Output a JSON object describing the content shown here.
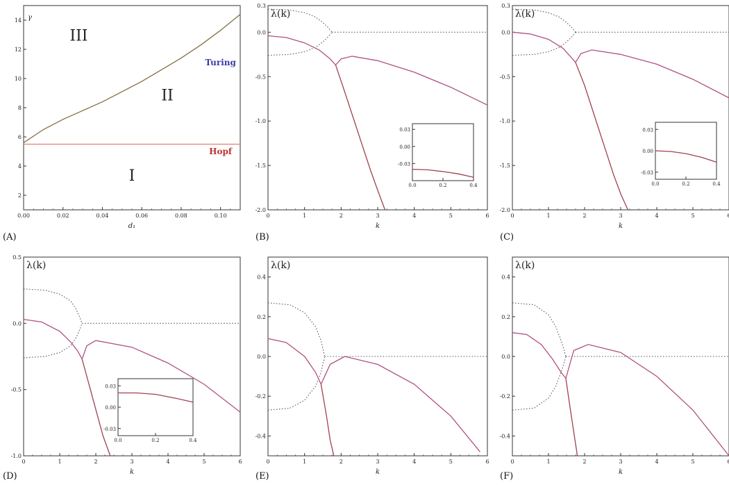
{
  "colors": {
    "axis": "#333333",
    "solid": "#a04050",
    "solid_alt": "#b05080",
    "dotted": "#555555",
    "hopf": "#e08070",
    "turing": "#807040",
    "turing_label": "#3a3aaa",
    "hopf_label": "#c03030"
  },
  "chart_data": [
    {
      "panel": "(A)",
      "type": "line",
      "xlabel": "d₁",
      "ylabel": "γ",
      "xlim": [
        0,
        0.11
      ],
      "ylim": [
        1,
        15
      ],
      "xticks": [
        "0.00",
        "0.02",
        "0.04",
        "0.06",
        "0.08",
        "0.10"
      ],
      "xtick_values": [
        0,
        0.02,
        0.04,
        0.06,
        0.08,
        0.1
      ],
      "yticks": [
        "2",
        "4",
        "6",
        "8",
        "10",
        "12",
        "14"
      ],
      "ytick_values": [
        2,
        4,
        6,
        8,
        10,
        12,
        14
      ],
      "series": [
        {
          "name": "Turing",
          "style": "solid",
          "color": "#807040",
          "x": [
            0,
            0.01,
            0.02,
            0.03,
            0.04,
            0.05,
            0.06,
            0.07,
            0.08,
            0.09,
            0.1,
            0.11
          ],
          "y": [
            5.6,
            6.5,
            7.2,
            7.8,
            8.4,
            9.1,
            9.8,
            10.6,
            11.4,
            12.3,
            13.3,
            14.4
          ]
        },
        {
          "name": "Hopf",
          "style": "solid",
          "color": "#e08070",
          "x": [
            0,
            0.11
          ],
          "y": [
            5.5,
            5.5
          ]
        }
      ],
      "region_labels": [
        {
          "text": "III",
          "x": 0.028,
          "y": 12.6
        },
        {
          "text": "II",
          "x": 0.073,
          "y": 8.5
        },
        {
          "text": "I",
          "x": 0.055,
          "y": 3.0
        }
      ],
      "curve_labels": [
        {
          "text": "Turing",
          "x": 0.1,
          "y": 10.9,
          "color": "#3a3aaa"
        },
        {
          "text": "Hopf",
          "x": 0.1,
          "y": 4.8,
          "color": "#c03030"
        }
      ]
    },
    {
      "panel": "(B)",
      "type": "line",
      "xlabel": "k",
      "ylabel": "λ(k)",
      "xlim": [
        0,
        6
      ],
      "ylim": [
        -2.0,
        0.3
      ],
      "xticks": [
        "0",
        "1",
        "2",
        "3",
        "4",
        "5",
        "6"
      ],
      "xtick_values": [
        0,
        1,
        2,
        3,
        4,
        5,
        6
      ],
      "yticks": [
        "0.3",
        "0.0",
        "-0.5",
        "-1.0",
        "-1.5",
        "-2.0"
      ],
      "ytick_values": [
        0.3,
        0.0,
        -0.5,
        -1.0,
        -1.5,
        -2.0
      ],
      "series": [
        {
          "style": "dotted",
          "x": [
            0,
            0.6,
            1.0,
            1.3,
            1.5,
            1.65,
            1.75
          ],
          "y": [
            0.26,
            0.25,
            0.22,
            0.17,
            0.11,
            0.05,
            0.0
          ]
        },
        {
          "style": "dotted",
          "x": [
            0,
            0.6,
            1.0,
            1.3,
            1.5,
            1.65,
            1.75
          ],
          "y": [
            -0.26,
            -0.25,
            -0.22,
            -0.17,
            -0.11,
            -0.05,
            0.0
          ]
        },
        {
          "style": "dotted",
          "x": [
            1.75,
            6
          ],
          "y": [
            0.0,
            0.0
          ]
        },
        {
          "style": "solid",
          "x": [
            0,
            0.5,
            1.0,
            1.4,
            1.7,
            1.85
          ],
          "y": [
            -0.04,
            -0.06,
            -0.12,
            -0.2,
            -0.3,
            -0.37
          ]
        },
        {
          "style": "solid",
          "x": [
            1.85,
            2.0,
            2.2,
            2.4,
            2.6,
            2.8,
            3.0,
            3.2
          ],
          "y": [
            -0.37,
            -0.55,
            -0.8,
            -1.05,
            -1.3,
            -1.55,
            -1.78,
            -2.0
          ]
        },
        {
          "style": "solid",
          "x": [
            1.85,
            2.0,
            2.3,
            3.0,
            4.0,
            5.0,
            6.0
          ],
          "y": [
            -0.37,
            -0.3,
            -0.27,
            -0.32,
            -0.45,
            -0.62,
            -0.82
          ]
        }
      ],
      "inset": {
        "xlim": [
          0,
          0.4
        ],
        "ylim": [
          -0.06,
          0.04
        ],
        "xticks": [
          "0.0",
          "0.2",
          "0.4"
        ],
        "xtick_values": [
          0,
          0.2,
          0.4
        ],
        "yticks": [
          "0.03",
          "0.00",
          "-0.03"
        ],
        "ytick_values": [
          0.03,
          0.0,
          -0.03
        ],
        "series": [
          {
            "style": "solid",
            "x": [
              0,
              0.1,
              0.2,
              0.3,
              0.4
            ],
            "y": [
              -0.04,
              -0.041,
              -0.044,
              -0.048,
              -0.054
            ]
          }
        ]
      }
    },
    {
      "panel": "(C)",
      "type": "line",
      "xlabel": "k",
      "ylabel": "λ(k)",
      "xlim": [
        0,
        6
      ],
      "ylim": [
        -2.0,
        0.3
      ],
      "xticks": [
        "0",
        "1",
        "2",
        "3",
        "4",
        "5",
        "6"
      ],
      "xtick_values": [
        0,
        1,
        2,
        3,
        4,
        5,
        6
      ],
      "yticks": [
        "0.3",
        "0.0",
        "-0.5",
        "-1.0",
        "-1.5",
        "-2.0"
      ],
      "ytick_values": [
        0.3,
        0.0,
        -0.5,
        -1.0,
        -1.5,
        -2.0
      ],
      "series": [
        {
          "style": "dotted",
          "x": [
            0,
            0.6,
            1.0,
            1.3,
            1.5,
            1.65,
            1.75
          ],
          "y": [
            0.26,
            0.25,
            0.22,
            0.17,
            0.11,
            0.05,
            0.0
          ]
        },
        {
          "style": "dotted",
          "x": [
            0,
            0.6,
            1.0,
            1.3,
            1.5,
            1.65,
            1.75
          ],
          "y": [
            -0.26,
            -0.25,
            -0.22,
            -0.17,
            -0.11,
            -0.05,
            0.0
          ]
        },
        {
          "style": "dotted",
          "x": [
            1.75,
            6
          ],
          "y": [
            0.0,
            0.0
          ]
        },
        {
          "style": "solid",
          "x": [
            0,
            0.5,
            1.0,
            1.4,
            1.6,
            1.75
          ],
          "y": [
            0.0,
            -0.02,
            -0.08,
            -0.18,
            -0.27,
            -0.34
          ]
        },
        {
          "style": "solid",
          "x": [
            1.75,
            2.0,
            2.2,
            2.4,
            2.6,
            2.8,
            3.0,
            3.2
          ],
          "y": [
            -0.34,
            -0.6,
            -0.85,
            -1.1,
            -1.35,
            -1.6,
            -1.82,
            -2.0
          ]
        },
        {
          "style": "solid",
          "x": [
            1.75,
            1.9,
            2.2,
            3.0,
            4.0,
            5.0,
            6.0
          ],
          "y": [
            -0.34,
            -0.24,
            -0.2,
            -0.25,
            -0.36,
            -0.53,
            -0.74
          ]
        }
      ],
      "inset": {
        "xlim": [
          0,
          0.4
        ],
        "ylim": [
          -0.04,
          0.04
        ],
        "xticks": [
          "0.0",
          "0.2",
          "0.4"
        ],
        "xtick_values": [
          0,
          0.2,
          0.4
        ],
        "yticks": [
          "0.03",
          "0.00",
          "-0.03"
        ],
        "ytick_values": [
          0.03,
          0.0,
          -0.03
        ],
        "series": [
          {
            "style": "solid",
            "x": [
              0,
              0.1,
              0.2,
              0.3,
              0.4
            ],
            "y": [
              0.0,
              -0.001,
              -0.004,
              -0.009,
              -0.016
            ]
          }
        ]
      }
    },
    {
      "panel": "(D)",
      "type": "line",
      "xlabel": "k",
      "ylabel": "λ(k)",
      "xlim": [
        0,
        6
      ],
      "ylim": [
        -1.0,
        0.5
      ],
      "xticks": [
        "0",
        "1",
        "2",
        "3",
        "4",
        "5",
        "6"
      ],
      "xtick_values": [
        0,
        1,
        2,
        3,
        4,
        5,
        6
      ],
      "yticks": [
        "0.5",
        "0.0",
        "-0.5",
        "-1.0"
      ],
      "ytick_values": [
        0.5,
        0.0,
        -0.5,
        -1.0
      ],
      "series": [
        {
          "style": "dotted",
          "x": [
            0,
            0.6,
            1.0,
            1.3,
            1.45,
            1.55,
            1.62
          ],
          "y": [
            0.26,
            0.25,
            0.22,
            0.17,
            0.11,
            0.05,
            0.0
          ]
        },
        {
          "style": "dotted",
          "x": [
            0,
            0.6,
            1.0,
            1.3,
            1.45,
            1.55,
            1.62
          ],
          "y": [
            -0.26,
            -0.25,
            -0.22,
            -0.17,
            -0.11,
            -0.05,
            0.0
          ]
        },
        {
          "style": "dotted",
          "x": [
            1.62,
            6
          ],
          "y": [
            0.0,
            0.0
          ]
        },
        {
          "style": "solid",
          "x": [
            0,
            0.5,
            1.0,
            1.3,
            1.5,
            1.62
          ],
          "y": [
            0.03,
            0.01,
            -0.06,
            -0.14,
            -0.21,
            -0.27
          ]
        },
        {
          "style": "solid",
          "x": [
            1.62,
            1.8,
            2.0,
            2.2,
            2.4
          ],
          "y": [
            -0.27,
            -0.45,
            -0.65,
            -0.85,
            -1.0
          ]
        },
        {
          "style": "solid",
          "x": [
            1.62,
            1.75,
            2.0,
            3.0,
            4.0,
            5.0,
            6.0
          ],
          "y": [
            -0.27,
            -0.17,
            -0.13,
            -0.18,
            -0.3,
            -0.46,
            -0.67
          ]
        }
      ],
      "inset": {
        "xlim": [
          0,
          0.4
        ],
        "ylim": [
          -0.04,
          0.04
        ],
        "xticks": [
          "0.0",
          "0.2",
          "0.4"
        ],
        "xtick_values": [
          0,
          0.2,
          0.4
        ],
        "yticks": [
          "0.03",
          "0.00",
          "-0.03"
        ],
        "ytick_values": [
          0.03,
          0.0,
          -0.03
        ],
        "series": [
          {
            "style": "solid",
            "x": [
              0,
              0.1,
              0.2,
              0.3,
              0.4
            ],
            "y": [
              0.02,
              0.02,
              0.018,
              0.013,
              0.007
            ]
          }
        ]
      }
    },
    {
      "panel": "(E)",
      "type": "line",
      "xlabel": "k",
      "ylabel": "λ(k)",
      "xlim": [
        0,
        6
      ],
      "ylim": [
        -0.5,
        0.5
      ],
      "xticks": [
        "0",
        "1",
        "2",
        "3",
        "4",
        "5",
        "6"
      ],
      "xtick_values": [
        0,
        1,
        2,
        3,
        4,
        5,
        6
      ],
      "yticks": [
        "0.4",
        "0.2",
        "0.0",
        "-0.2",
        "-0.4"
      ],
      "ytick_values": [
        0.4,
        0.2,
        0.0,
        -0.2,
        -0.4
      ],
      "series": [
        {
          "style": "dotted",
          "x": [
            0,
            0.6,
            1.0,
            1.3,
            1.45,
            1.5,
            1.55
          ],
          "y": [
            0.27,
            0.26,
            0.22,
            0.15,
            0.08,
            0.04,
            0.0
          ]
        },
        {
          "style": "dotted",
          "x": [
            0,
            0.6,
            1.0,
            1.3,
            1.45,
            1.5,
            1.55
          ],
          "y": [
            -0.27,
            -0.26,
            -0.22,
            -0.15,
            -0.08,
            -0.04,
            0.0
          ]
        },
        {
          "style": "dotted",
          "x": [
            1.55,
            6
          ],
          "y": [
            0.0,
            0.0
          ]
        },
        {
          "style": "solid",
          "x": [
            0,
            0.5,
            1.0,
            1.3,
            1.45
          ],
          "y": [
            0.09,
            0.07,
            0.0,
            -0.08,
            -0.14
          ]
        },
        {
          "style": "solid",
          "x": [
            1.45,
            1.6,
            1.7,
            1.8
          ],
          "y": [
            -0.14,
            -0.3,
            -0.42,
            -0.5
          ]
        },
        {
          "style": "solid",
          "x": [
            1.45,
            1.7,
            2.1,
            3.0,
            4.0,
            5.0,
            5.8
          ],
          "y": [
            -0.14,
            -0.04,
            0.0,
            -0.04,
            -0.14,
            -0.3,
            -0.48
          ]
        }
      ]
    },
    {
      "panel": "(F)",
      "type": "line",
      "xlabel": "k",
      "ylabel": "λ(k)",
      "xlim": [
        0,
        6
      ],
      "ylim": [
        -0.5,
        0.5
      ],
      "xticks": [
        "0",
        "1",
        "2",
        "3",
        "4",
        "5",
        "6"
      ],
      "xtick_values": [
        0,
        1,
        2,
        3,
        4,
        5,
        6
      ],
      "yticks": [
        "0.4",
        "0.2",
        "0.0",
        "-0.2",
        "-0.4"
      ],
      "ytick_values": [
        0.4,
        0.2,
        0.0,
        -0.2,
        -0.4
      ],
      "series": [
        {
          "style": "dotted",
          "x": [
            0,
            0.6,
            1.0,
            1.2,
            1.35,
            1.42,
            1.48
          ],
          "y": [
            0.27,
            0.26,
            0.21,
            0.15,
            0.08,
            0.04,
            0.0
          ]
        },
        {
          "style": "dotted",
          "x": [
            0,
            0.6,
            1.0,
            1.2,
            1.35,
            1.42,
            1.48
          ],
          "y": [
            -0.27,
            -0.26,
            -0.21,
            -0.15,
            -0.08,
            -0.04,
            0.0
          ]
        },
        {
          "style": "dotted",
          "x": [
            1.48,
            6
          ],
          "y": [
            0.0,
            0.0
          ]
        },
        {
          "style": "solid",
          "x": [
            0,
            0.4,
            0.8,
            1.1,
            1.35,
            1.48
          ],
          "y": [
            0.12,
            0.11,
            0.06,
            -0.01,
            -0.08,
            -0.11
          ]
        },
        {
          "style": "solid",
          "x": [
            1.48,
            1.6,
            1.7,
            1.8
          ],
          "y": [
            -0.11,
            -0.26,
            -0.38,
            -0.5
          ]
        },
        {
          "style": "solid",
          "x": [
            1.48,
            1.7,
            2.1,
            3.0,
            4.0,
            5.0,
            6.0
          ],
          "y": [
            -0.11,
            0.03,
            0.06,
            0.02,
            -0.1,
            -0.27,
            -0.5
          ]
        }
      ]
    }
  ]
}
